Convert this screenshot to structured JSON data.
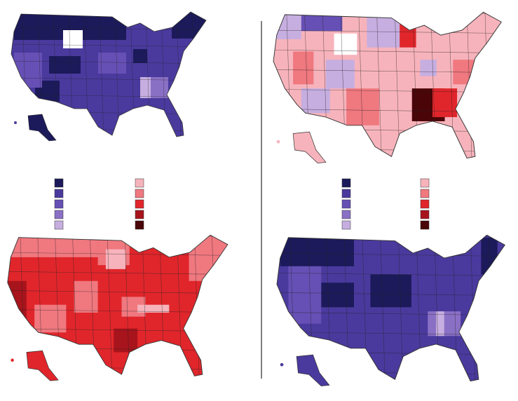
{
  "legends": [
    {
      "palette": "blue",
      "colors": [
        "#1c1a5a",
        "#4a3a9e",
        "#6650b5",
        "#8a70c5",
        "#c6aee0"
      ]
    },
    {
      "palette": "red",
      "colors": [
        "#f7b3bb",
        "#f0787f",
        "#e0262b",
        "#a8141c",
        "#4a0508"
      ]
    }
  ]
}
